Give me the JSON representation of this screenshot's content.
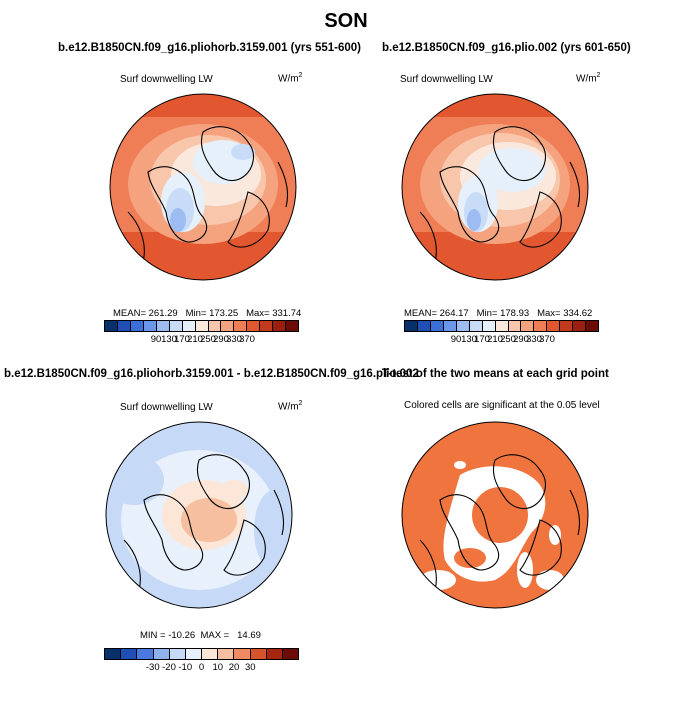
{
  "title": "SON",
  "panels": [
    {
      "title": "b.e12.B1850CN.f09_g16.pliohorb.3159.001 (yrs 551-600)",
      "variable": "Surf downwelling LW",
      "units_base": "W/m",
      "units_exp": "2",
      "stats": "MEAN= 261.29   Min= 173.25   Max= 331.74",
      "colorbar_ticks": [
        "90",
        "130",
        "170",
        "210",
        "250",
        "290",
        "330",
        "370"
      ]
    },
    {
      "title": "b.e12.B1850CN.f09_g16.plio.002 (yrs 601-650)",
      "variable": "Surf downwelling LW",
      "units_base": "W/m",
      "units_exp": "2",
      "stats": "MEAN= 264.17   Min= 178.93   Max= 334.62",
      "colorbar_ticks": [
        "90",
        "130",
        "170",
        "210",
        "250",
        "290",
        "330",
        "370"
      ]
    },
    {
      "title": "b.e12.B1850CN.f09_g16.pliohorb.3159.001 - b.e12.B1850CN.f09_g16.plio.002",
      "variable": "Surf downwelling LW",
      "units_base": "W/m",
      "units_exp": "2",
      "stats": "MIN = -10.26  MAX =   14.69",
      "colorbar_ticks": [
        "-30",
        "-20",
        "-10",
        "0",
        "10",
        "20",
        "30"
      ]
    },
    {
      "title": "T-test of the two means at each grid point",
      "subtitle": "Colored cells are significant at the 0.05 level"
    }
  ],
  "colors": {
    "abs_scale": [
      "#08306b",
      "#1f4fb4",
      "#3d6fd9",
      "#6a97e8",
      "#9dbdf2",
      "#c8dcf8",
      "#e6f0fb",
      "#fbe8dc",
      "#f8c7ab",
      "#f5a27e",
      "#ef7d56",
      "#e2572f",
      "#c23a1e",
      "#9a1f10",
      "#6b0d06"
    ],
    "diff_scale": [
      "#08306b",
      "#1f4fb4",
      "#4a7ae0",
      "#8fb2ef",
      "#c6d9f6",
      "#e8f0fb",
      "#fbe6d8",
      "#f6bfa0",
      "#ef8a62",
      "#d6532c",
      "#a8260f",
      "#6b0d06"
    ],
    "significant": "#f0743e"
  }
}
